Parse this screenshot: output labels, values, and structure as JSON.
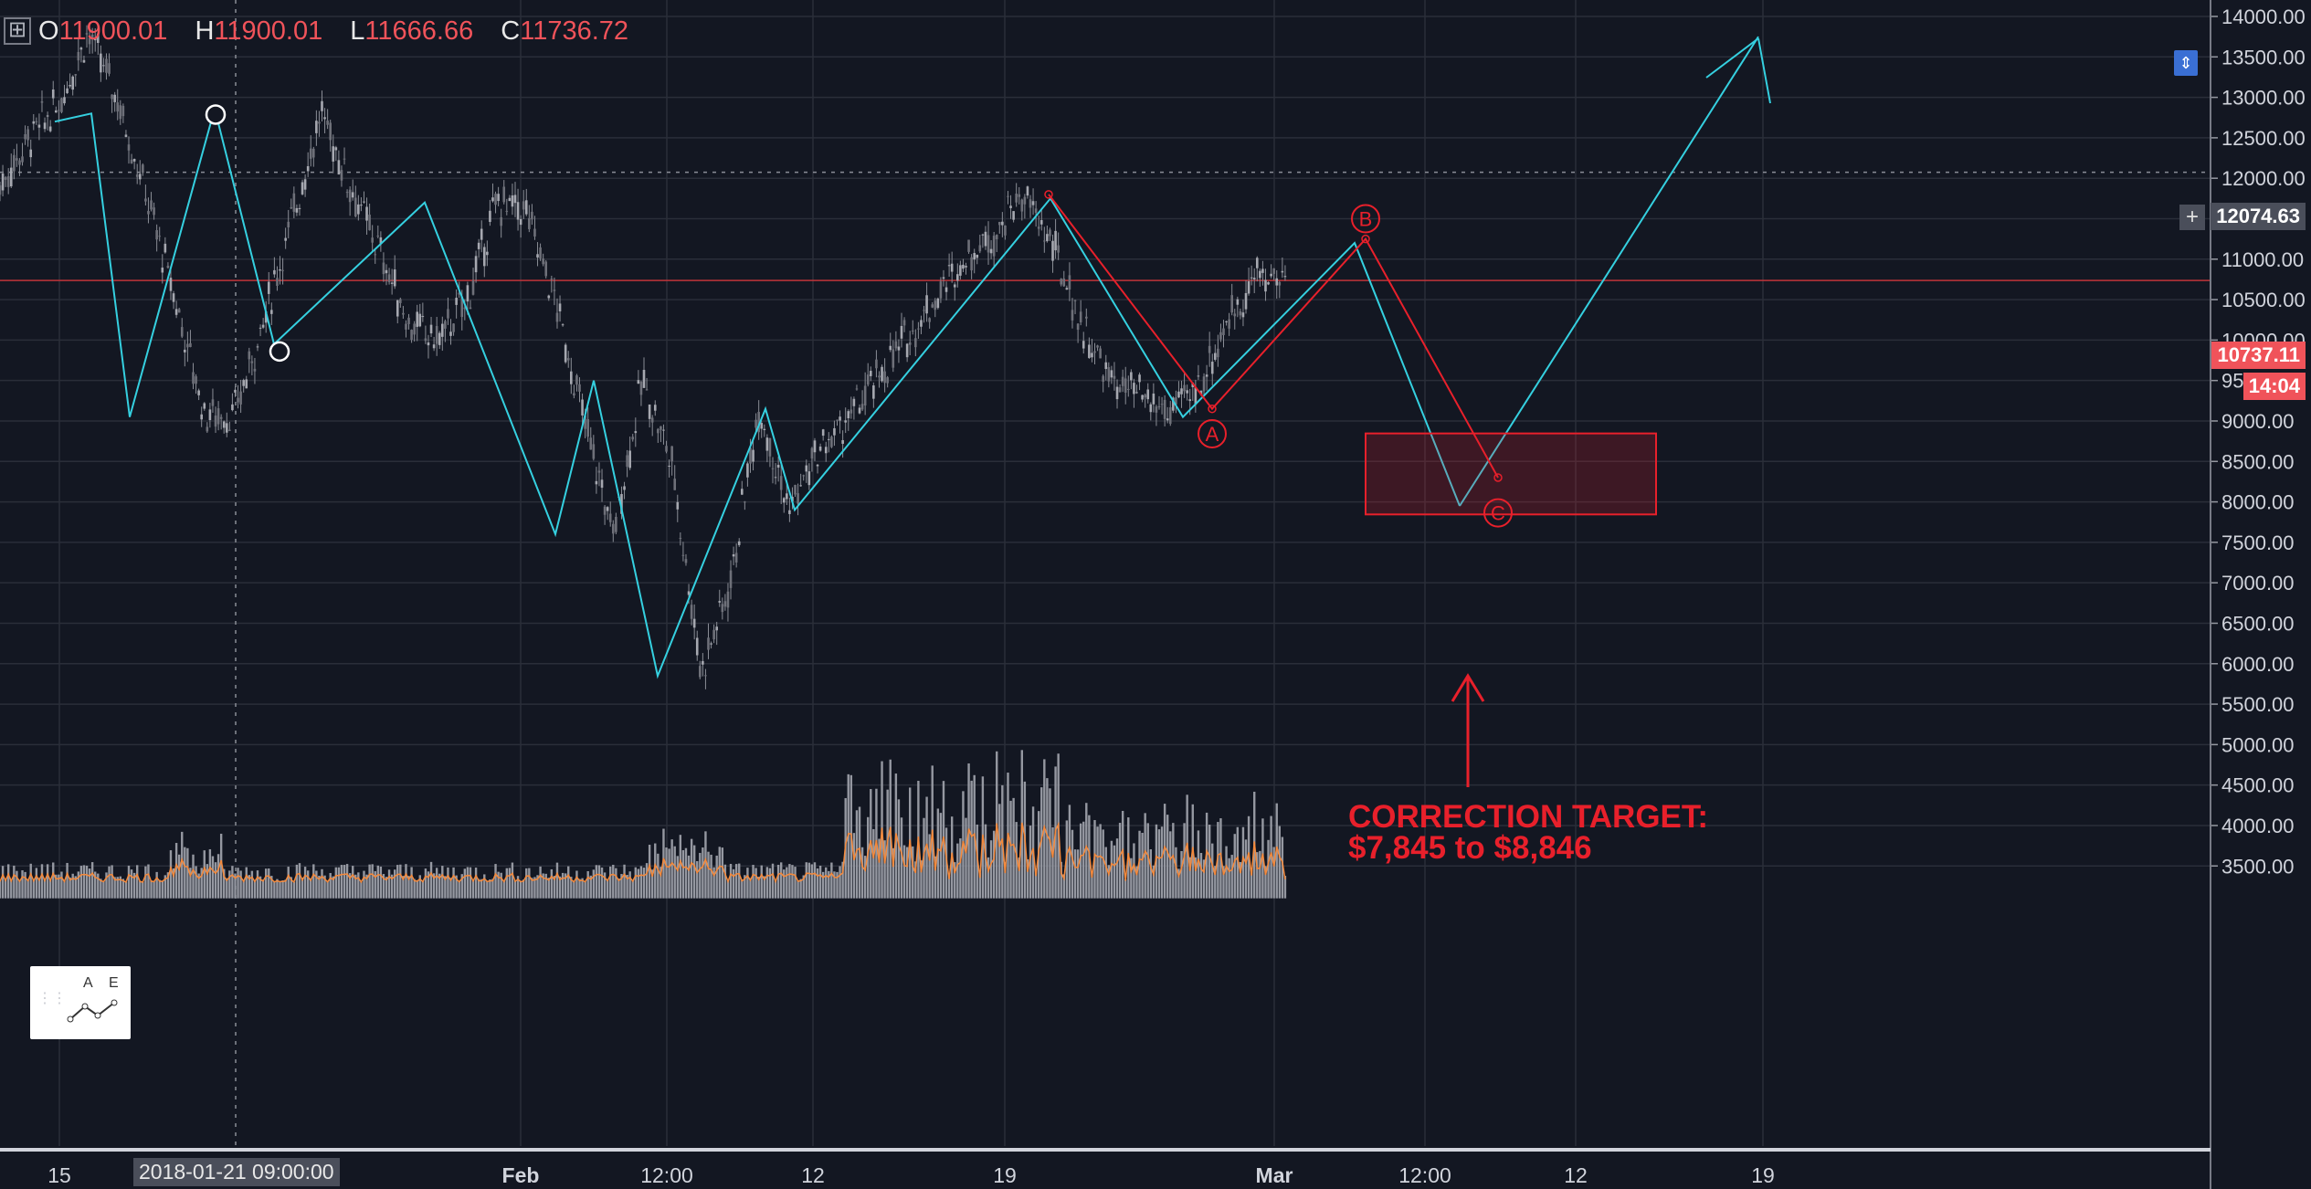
{
  "ohlc": {
    "o_label": "O",
    "o": "11900.01",
    "h_label": "H",
    "h": "11900.01",
    "l_label": "L",
    "l": "11666.66",
    "c_label": "C",
    "c": "11736.72"
  },
  "crosshair_date": "2018-01-21 09:00:00",
  "crosshair_price": "12074.63",
  "last_price": "10737.11",
  "countdown": "14:04",
  "annotation": {
    "line1": "CORRECTION TARGET:",
    "line2": "$7,845 to $8,846"
  },
  "wave_labels": {
    "a": "A",
    "b": "B",
    "c": "C"
  },
  "widget": {
    "a": "A",
    "e": "E"
  },
  "colors": {
    "background": "#131722",
    "cyan": "#35d0e0",
    "red": "#e8202b",
    "candle": "#8a8d96",
    "volume": "#9598a1",
    "ma": "#f58a3c",
    "grid": "#2a2e39"
  },
  "chart_data": {
    "type": "line",
    "y_ticks": [
      "14000.00",
      "13500.00",
      "13000.00",
      "12500.00",
      "12000.00",
      "11500.00",
      "11000.00",
      "10500.00",
      "10000.00",
      "9500.00",
      "9000.00",
      "8500.00",
      "8000.00",
      "7500.00",
      "7000.00",
      "6500.00",
      "6000.00",
      "5500.00",
      "5000.00",
      "4500.00",
      "4000.00",
      "3500.00"
    ],
    "x_ticks": [
      "15",
      "Feb",
      "12:00",
      "12",
      "19",
      "Mar",
      "12:00",
      "12",
      "19"
    ],
    "ylim": [
      3100,
      14150
    ],
    "series": [
      {
        "values": [
          11900,
          12500,
          12900,
          13800,
          13000,
          11800,
          10500,
          9100,
          9050,
          10200,
          11500,
          12800,
          11900,
          11100,
          10200,
          10000,
          10500,
          11700,
          11600,
          10500,
          9000,
          7600,
          9500,
          8500,
          5900,
          7000,
          9200,
          7900,
          8600,
          9000,
          9500,
          10000,
          10500,
          11000,
          11300,
          11800,
          11200,
          10200,
          9500,
          9300,
          9100,
          9400,
          10200,
          10800,
          10737
        ]
      },
      {
        "values": [
          12700,
          12800,
          9050,
          12860,
          9950,
          11700,
          7600,
          9500,
          5850,
          9150,
          7900,
          11750,
          9050,
          11200,
          7950,
          13750,
          13050
        ]
      },
      {
        "values": [
          11800,
          9150,
          11250,
          8300
        ]
      }
    ],
    "target_zone": [
      7845,
      8846
    ],
    "points": {
      "A": 9150,
      "B": 11250,
      "C": 8300
    }
  }
}
